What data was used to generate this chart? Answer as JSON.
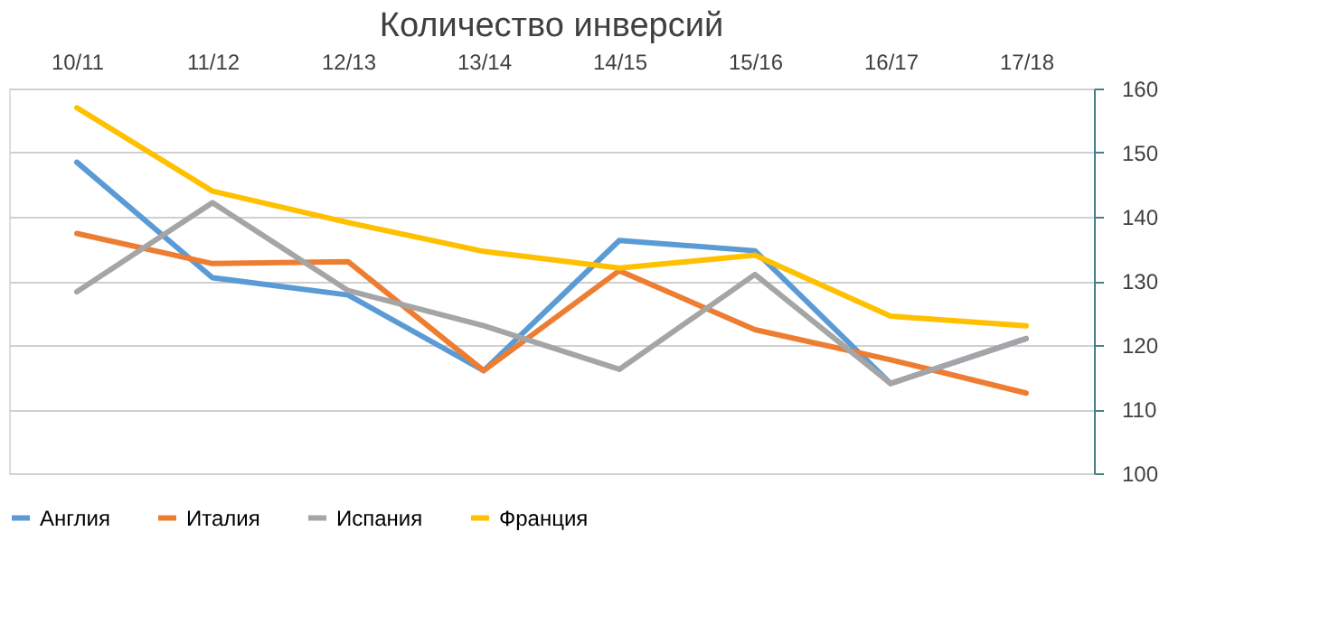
{
  "chart_data": {
    "type": "line",
    "title": "Количество инверсий",
    "categories": [
      "10/11",
      "11/12",
      "12/13",
      "13/14",
      "14/15",
      "15/16",
      "16/17",
      "17/18"
    ],
    "series": [
      {
        "name": "Англия",
        "color": "#5b9bd5",
        "values": [
          148.5,
          130.5,
          127.8,
          116,
          136.3,
          134.7,
          114,
          121
        ]
      },
      {
        "name": "Италия",
        "color": "#ed7d31",
        "values": [
          137.4,
          132.7,
          133,
          116,
          131.6,
          122.4,
          117.7,
          112.5
        ]
      },
      {
        "name": "Испания",
        "color": "#a5a5a5",
        "values": [
          128.3,
          142.2,
          128.5,
          123,
          116.2,
          131,
          114,
          121
        ]
      },
      {
        "name": "Франция",
        "color": "#ffc000",
        "values": [
          157,
          144,
          139.1,
          134.6,
          132,
          134,
          124.5,
          123
        ]
      }
    ],
    "ylim": [
      100,
      160
    ],
    "yticks": [
      100,
      110,
      120,
      130,
      140,
      150,
      160
    ],
    "grid": "y",
    "legend": "bottom"
  }
}
